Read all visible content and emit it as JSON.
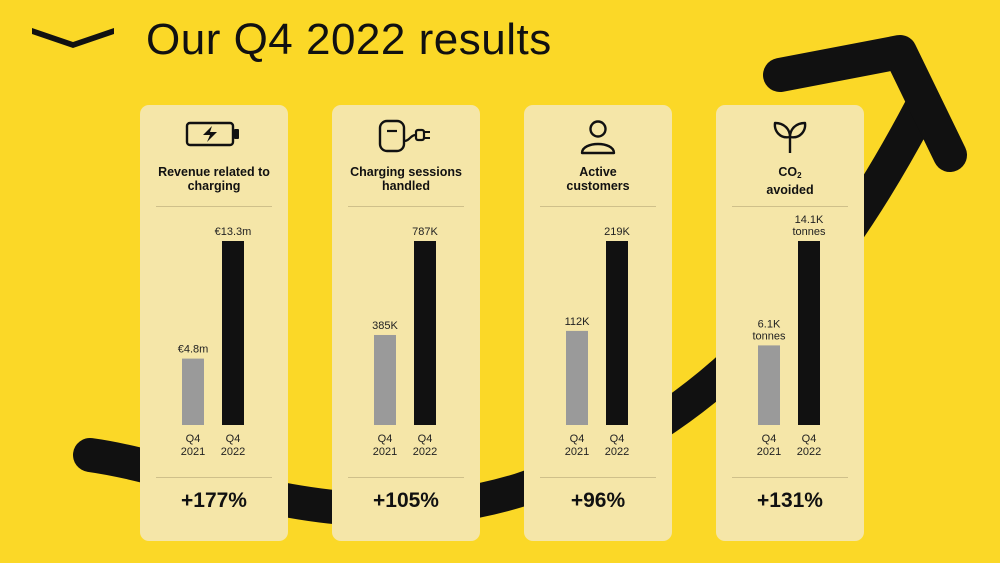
{
  "title": "Our Q4 2022 results",
  "colors": {
    "background": "#fbd827",
    "card": "#f5e6a8",
    "bar_2021": "#9a9a9a",
    "bar_2022": "#111111"
  },
  "icons": [
    "battery-charging-icon",
    "charger-plug-icon",
    "person-icon",
    "sprout-icon"
  ],
  "chart_data": [
    {
      "type": "bar",
      "title": "Revenue related to charging",
      "categories": [
        "Q4 2021",
        "Q4 2022"
      ],
      "values": [
        4.8,
        13.3
      ],
      "value_labels": [
        "€4.8m",
        "€13.3m"
      ],
      "change": "+177%"
    },
    {
      "type": "bar",
      "title": "Charging sessions handled",
      "categories": [
        "Q4 2021",
        "Q4 2022"
      ],
      "values": [
        385,
        787
      ],
      "value_labels": [
        "385K",
        "787K"
      ],
      "change": "+105%"
    },
    {
      "type": "bar",
      "title": "Active customers",
      "categories": [
        "Q4 2021",
        "Q4 2022"
      ],
      "values": [
        112,
        219
      ],
      "value_labels": [
        "112K",
        "219K"
      ],
      "change": "+96%"
    },
    {
      "type": "bar",
      "title": "CO2 avoided",
      "title_main": "CO",
      "title_sub": "2",
      "title_rest": "avoided",
      "categories": [
        "Q4 2021",
        "Q4 2022"
      ],
      "values": [
        6.1,
        14.1
      ],
      "value_labels": [
        "6.1K tonnes",
        "14.1K tonnes"
      ],
      "change": "+131%"
    }
  ]
}
